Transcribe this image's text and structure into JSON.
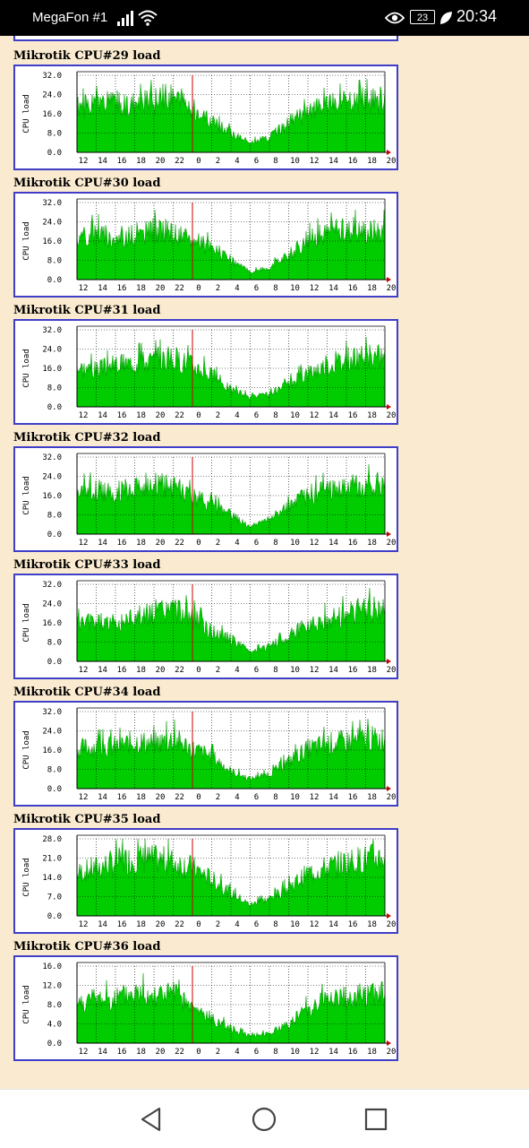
{
  "status_bar": {
    "carrier": "MegaFon #1",
    "battery": "23",
    "time": "20:34",
    "icons": [
      "signal-icon",
      "wifi-icon",
      "eye-icon",
      "battery-icon",
      "leaf-icon"
    ]
  },
  "colors": {
    "background": "#faebd0",
    "frame": "#3e3ec8",
    "fill": "#00cc00",
    "stroke": "#009900",
    "midnight": "#cc0000",
    "grid": "#000000"
  },
  "axis_label": "CPU load",
  "x_ticks": [
    "12",
    "14",
    "16",
    "18",
    "20",
    "22",
    "0",
    "2",
    "4",
    "6",
    "8",
    "10",
    "12",
    "14",
    "16",
    "18",
    "20"
  ],
  "charts": [
    {
      "title": "Mikrotik CPU#29 load",
      "y_ticks": [
        "32.0",
        "24.0",
        "16.0",
        "8.0",
        "0.0"
      ]
    },
    {
      "title": "Mikrotik CPU#30 load",
      "y_ticks": [
        "32.0",
        "24.0",
        "16.0",
        "8.0",
        "0.0"
      ]
    },
    {
      "title": "Mikrotik CPU#31 load",
      "y_ticks": [
        "32.0",
        "24.0",
        "16.0",
        "8.0",
        "0.0"
      ]
    },
    {
      "title": "Mikrotik CPU#32 load",
      "y_ticks": [
        "32.0",
        "24.0",
        "16.0",
        "8.0",
        "0.0"
      ]
    },
    {
      "title": "Mikrotik CPU#33 load",
      "y_ticks": [
        "32.0",
        "24.0",
        "16.0",
        "8.0",
        "0.0"
      ]
    },
    {
      "title": "Mikrotik CPU#34 load",
      "y_ticks": [
        "32.0",
        "24.0",
        "16.0",
        "8.0",
        "0.0"
      ]
    },
    {
      "title": "Mikrotik CPU#35 load",
      "y_ticks": [
        "28.0",
        "21.0",
        "14.0",
        "7.0",
        "0.0"
      ]
    },
    {
      "title": "Mikrotik CPU#36 load",
      "y_ticks": [
        "16.0",
        "12.0",
        "8.0",
        "4.0",
        "0.0"
      ]
    }
  ],
  "chart_data": [
    {
      "type": "area",
      "title": "Mikrotik CPU#29 load",
      "ylabel": "CPU load",
      "ylim": [
        0,
        32
      ],
      "grid": true,
      "x": [
        "12",
        "14",
        "16",
        "18",
        "20",
        "22",
        "0",
        "2",
        "4",
        "6",
        "8",
        "10",
        "12",
        "14",
        "16",
        "18",
        "20"
      ],
      "values": [
        18,
        19,
        20,
        19,
        21,
        23,
        18,
        12,
        8,
        4,
        6,
        12,
        16,
        19,
        20,
        21,
        21
      ]
    },
    {
      "type": "area",
      "title": "Mikrotik CPU#30 load",
      "ylabel": "CPU load",
      "ylim": [
        0,
        32
      ],
      "grid": true,
      "x": [
        "12",
        "14",
        "16",
        "18",
        "20",
        "22",
        "0",
        "2",
        "4",
        "6",
        "8",
        "10",
        "12",
        "14",
        "16",
        "18",
        "20"
      ],
      "values": [
        17,
        19,
        17,
        18,
        20,
        19,
        16,
        13,
        8,
        3,
        5,
        10,
        16,
        19,
        20,
        20,
        20
      ]
    },
    {
      "type": "area",
      "title": "Mikrotik CPU#31 load",
      "ylabel": "CPU load",
      "ylim": [
        0,
        32
      ],
      "grid": true,
      "x": [
        "12",
        "14",
        "16",
        "18",
        "20",
        "22",
        "0",
        "2",
        "4",
        "6",
        "8",
        "10",
        "12",
        "14",
        "16",
        "18",
        "20"
      ],
      "values": [
        16,
        15,
        17,
        18,
        19,
        20,
        17,
        13,
        7,
        4,
        5,
        9,
        14,
        17,
        19,
        20,
        21
      ]
    },
    {
      "type": "area",
      "title": "Mikrotik CPU#32 load",
      "ylabel": "CPU load",
      "ylim": [
        0,
        32
      ],
      "grid": true,
      "x": [
        "12",
        "14",
        "16",
        "18",
        "20",
        "22",
        "0",
        "2",
        "4",
        "6",
        "8",
        "10",
        "12",
        "14",
        "16",
        "18",
        "20"
      ],
      "values": [
        17,
        18,
        17,
        19,
        20,
        19,
        15,
        12,
        8,
        3,
        6,
        11,
        16,
        18,
        19,
        20,
        20
      ]
    },
    {
      "type": "area",
      "title": "Mikrotik CPU#33 load",
      "ylabel": "CPU load",
      "ylim": [
        0,
        32
      ],
      "grid": true,
      "x": [
        "12",
        "14",
        "16",
        "18",
        "20",
        "22",
        "0",
        "2",
        "4",
        "6",
        "8",
        "10",
        "12",
        "14",
        "16",
        "18",
        "20"
      ],
      "values": [
        15,
        16,
        15,
        18,
        20,
        21,
        18,
        12,
        9,
        4,
        6,
        10,
        15,
        17,
        19,
        21,
        21
      ]
    },
    {
      "type": "area",
      "title": "Mikrotik CPU#34 load",
      "ylabel": "CPU load",
      "ylim": [
        0,
        32
      ],
      "grid": true,
      "x": [
        "12",
        "14",
        "16",
        "18",
        "20",
        "22",
        "0",
        "2",
        "4",
        "6",
        "8",
        "10",
        "12",
        "14",
        "16",
        "18",
        "20"
      ],
      "values": [
        16,
        17,
        17,
        19,
        18,
        20,
        16,
        13,
        7,
        4,
        6,
        11,
        16,
        18,
        19,
        20,
        20
      ]
    },
    {
      "type": "area",
      "title": "Mikrotik CPU#35 load",
      "ylabel": "CPU load",
      "ylim": [
        0,
        28
      ],
      "grid": true,
      "x": [
        "12",
        "14",
        "16",
        "18",
        "20",
        "22",
        "0",
        "2",
        "4",
        "6",
        "8",
        "10",
        "12",
        "14",
        "16",
        "18",
        "20"
      ],
      "values": [
        15,
        17,
        19,
        20,
        20,
        19,
        17,
        13,
        8,
        4,
        6,
        10,
        15,
        17,
        19,
        20,
        21
      ]
    },
    {
      "type": "area",
      "title": "Mikrotik CPU#36 load",
      "ylabel": "CPU load",
      "ylim": [
        0,
        16
      ],
      "grid": true,
      "x": [
        "12",
        "14",
        "16",
        "18",
        "20",
        "22",
        "0",
        "2",
        "4",
        "6",
        "8",
        "10",
        "12",
        "14",
        "16",
        "18",
        "20"
      ],
      "values": [
        8,
        9,
        9,
        10,
        10,
        10,
        7,
        5,
        3,
        1.5,
        2,
        4,
        7,
        9,
        9,
        10,
        10
      ]
    }
  ],
  "nav_bar": {
    "buttons": [
      "back-icon",
      "home-icon",
      "recents-icon"
    ]
  }
}
